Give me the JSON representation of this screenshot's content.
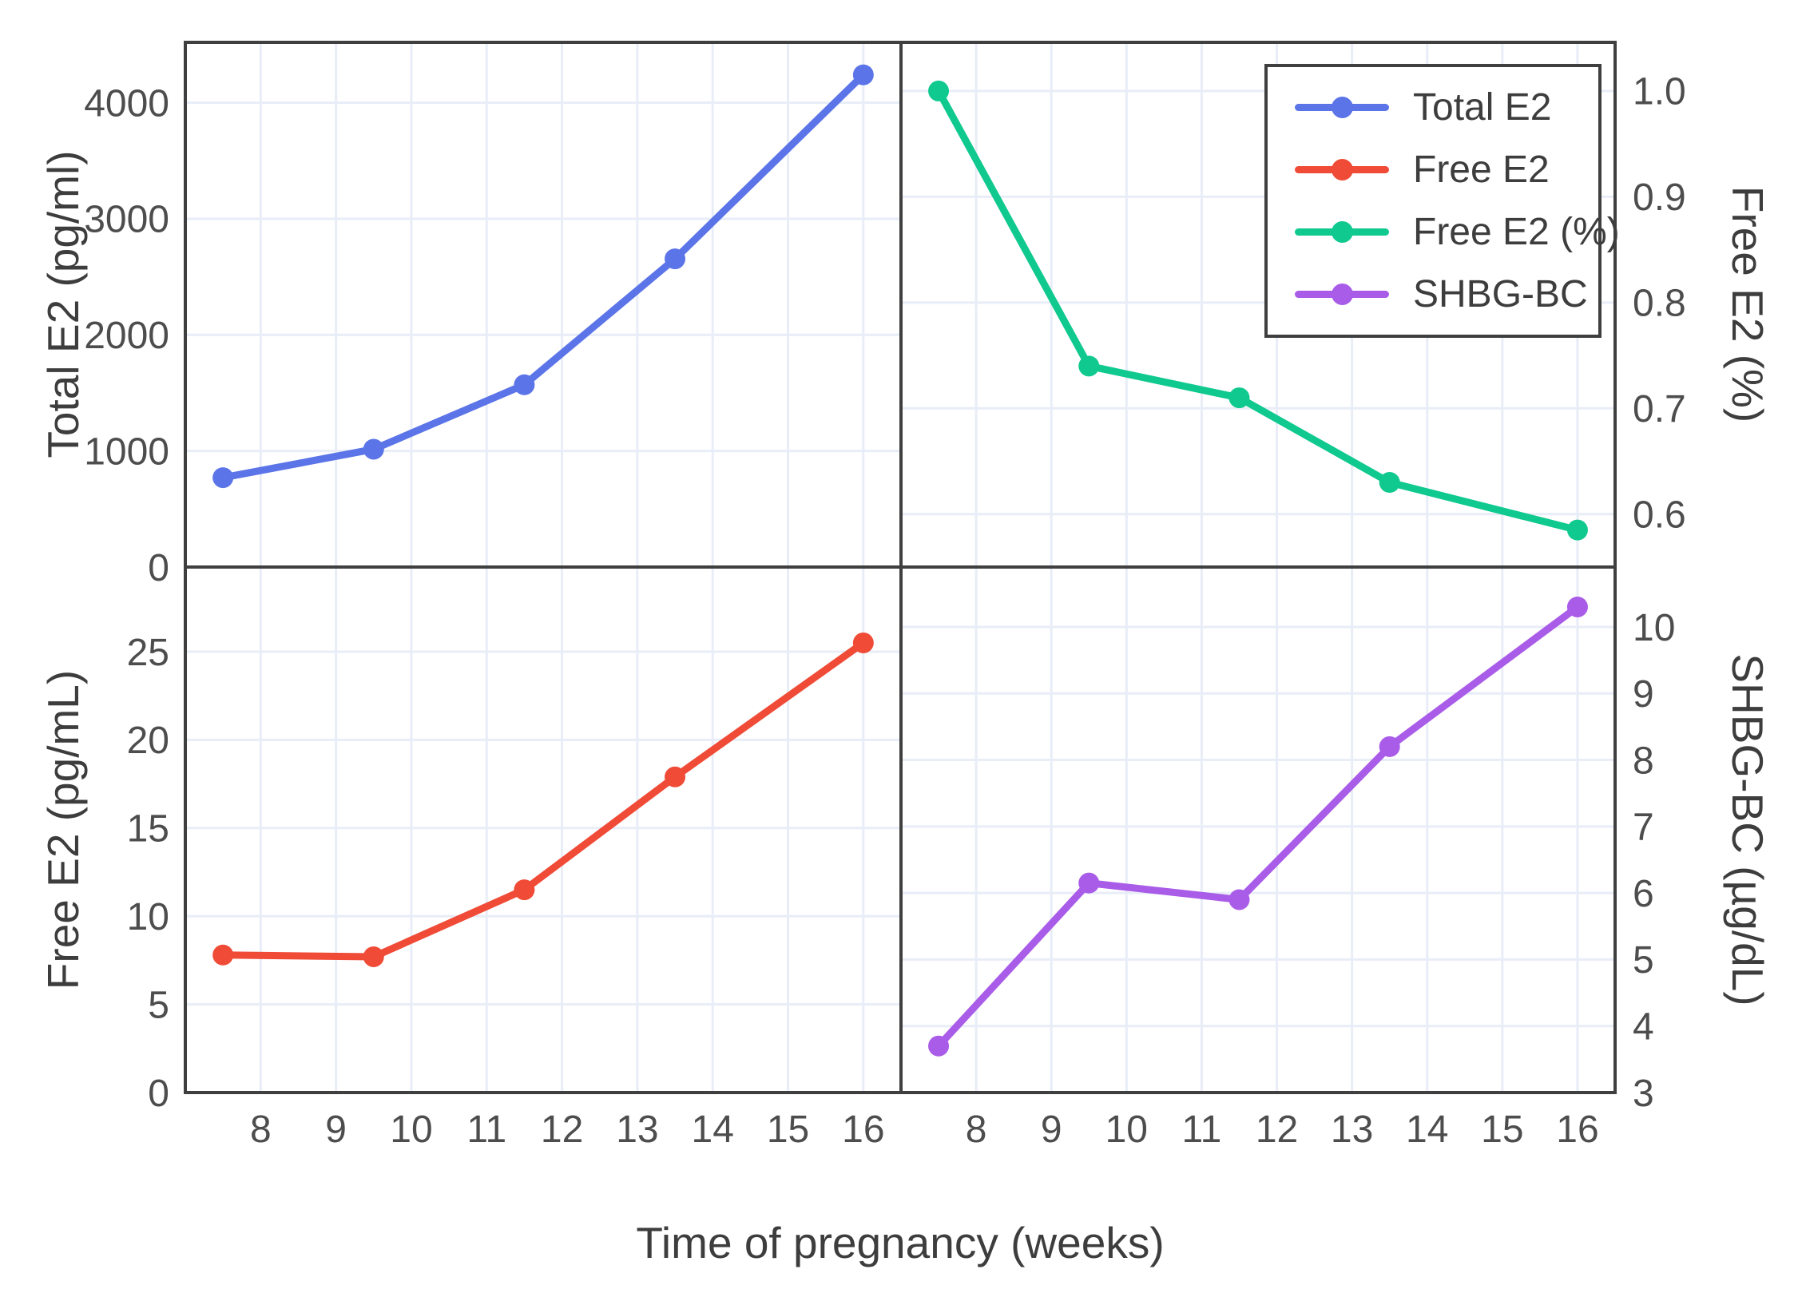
{
  "figure": {
    "xlabel": "Time of pregnancy (weeks)",
    "x_tick_labels": [
      "8",
      "9",
      "10",
      "11",
      "12",
      "13",
      "14",
      "15",
      "16"
    ],
    "x_ticks": [
      8,
      9,
      10,
      11,
      12,
      13,
      14,
      15,
      16
    ],
    "background": "#ffffff",
    "grid_color": "#e8edf7",
    "border_color": "#3f3f3f",
    "tick_text_color": "#4d4d4d"
  },
  "chart_data": [
    {
      "type": "line",
      "panel": "top-left",
      "series_name": "Total E2",
      "ylabel": "Total E2 (pg/ml)",
      "ylabel_side": "left",
      "color": "#5b74e8",
      "x": [
        7.5,
        9.5,
        11.5,
        13.5,
        16
      ],
      "values": [
        770,
        1015,
        1570,
        2655,
        4240
      ],
      "yticks": [
        0,
        1000,
        2000,
        3000,
        4000
      ],
      "ytick_labels": [
        "0",
        "1000",
        "2000",
        "3000",
        "4000"
      ],
      "ylim": [
        0,
        4520
      ],
      "xlim": [
        7.0,
        16.5
      ],
      "grid": true
    },
    {
      "type": "line",
      "panel": "top-right",
      "series_name": "Free E2 (%)",
      "ylabel": "Free E2 (%)",
      "ylabel_side": "right",
      "color": "#10c98e",
      "x": [
        7.5,
        9.5,
        11.5,
        13.5,
        16
      ],
      "values": [
        1.0,
        0.74,
        0.71,
        0.63,
        0.585
      ],
      "yticks": [
        0.6,
        0.7,
        0.8,
        0.9,
        1.0
      ],
      "ytick_labels": [
        "0.6",
        "0.7",
        "0.8",
        "0.9",
        "1.0"
      ],
      "ylim": [
        0.55,
        1.046
      ],
      "xlim": [
        7.0,
        16.5
      ],
      "grid": true
    },
    {
      "type": "line",
      "panel": "bottom-left",
      "series_name": "Free E2",
      "ylabel": "Free E2 (pg/mL)",
      "ylabel_side": "left",
      "color": "#f04b37",
      "x": [
        7.5,
        9.5,
        11.5,
        13.5,
        16
      ],
      "values": [
        7.8,
        7.7,
        11.5,
        17.9,
        25.5
      ],
      "yticks": [
        0,
        5,
        10,
        15,
        20,
        25
      ],
      "ytick_labels": [
        "0",
        "5",
        "10",
        "15",
        "20",
        "25"
      ],
      "ylim": [
        0,
        29.8
      ],
      "xlim": [
        7.0,
        16.5
      ],
      "grid": true
    },
    {
      "type": "line",
      "panel": "bottom-right",
      "series_name": "SHBG-BC",
      "ylabel": "SHBG-BC (µg/dL)",
      "ylabel_side": "right",
      "color": "#a95ce8",
      "x": [
        7.5,
        9.5,
        11.5,
        13.5,
        16
      ],
      "values": [
        3.7,
        6.15,
        5.9,
        8.2,
        10.3
      ],
      "yticks": [
        3,
        4,
        5,
        6,
        7,
        8,
        9,
        10
      ],
      "ytick_labels": [
        "3",
        "4",
        "5",
        "6",
        "7",
        "8",
        "9",
        "10"
      ],
      "ylim": [
        3,
        10.9
      ],
      "xlim": [
        7.0,
        16.5
      ],
      "grid": true
    }
  ],
  "legend": {
    "position": "top-right-panel",
    "entries": [
      {
        "label": "Total E2",
        "color": "#5b74e8"
      },
      {
        "label": "Free E2",
        "color": "#f04b37"
      },
      {
        "label": "Free E2 (%)",
        "color": "#10c98e"
      },
      {
        "label": "SHBG-BC",
        "color": "#a95ce8"
      }
    ]
  }
}
